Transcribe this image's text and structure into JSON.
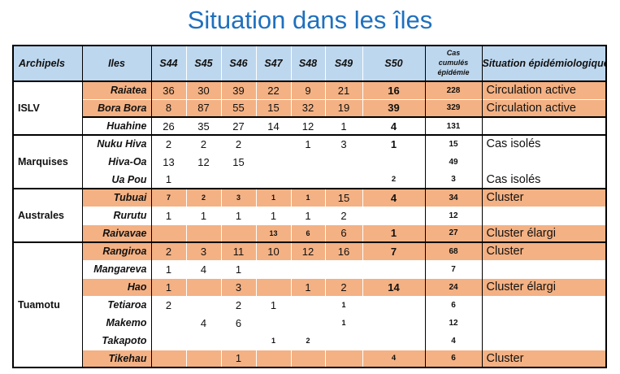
{
  "title": "Situation dans les îles",
  "colors": {
    "title_blue": "#1F70BE",
    "header_bg": "#BDD7EE",
    "highlight_orange": "#F4B183",
    "border_black": "#000000"
  },
  "table": {
    "headers": {
      "archipels": "Archipels",
      "iles": "Iles",
      "weeks": [
        "S44",
        "S45",
        "S46",
        "S47",
        "S48",
        "S49",
        "S50"
      ],
      "cumul": "Cas cumulés épidémie",
      "situation": "Situation épidémiologique"
    },
    "groups": [
      {
        "name": "ISLV",
        "rows": [
          {
            "island": "Raiatea",
            "orange": true,
            "weeks": [
              "36",
              "30",
              "39",
              "22",
              "9",
              "21",
              "16"
            ],
            "cumul": "228",
            "situation": "Circulation active"
          },
          {
            "island": "Bora Bora",
            "orange": true,
            "divider": true,
            "weeks": [
              "8",
              "87",
              "55",
              "15",
              "32",
              "19",
              "39"
            ],
            "cumul": "329",
            "situation": "Circulation active"
          },
          {
            "island": "Huahine",
            "orange": false,
            "weeks": [
              "26",
              "35",
              "27",
              "14",
              "12",
              "1",
              "4"
            ],
            "cumul": "131",
            "situation": ""
          }
        ]
      },
      {
        "name": "Marquises",
        "rows": [
          {
            "island": "Nuku Hiva",
            "orange": false,
            "weeks": [
              "2",
              "2",
              "2",
              null,
              "1",
              "3",
              "1"
            ],
            "cumul": "15",
            "situation": "Cas isolés"
          },
          {
            "island": "Hiva-Oa",
            "orange": false,
            "weeks": [
              "13",
              "12",
              "15",
              null,
              null,
              null,
              null
            ],
            "cumul": "49",
            "situation": ""
          },
          {
            "island": "Ua Pou",
            "orange": false,
            "weeks": [
              "1",
              null,
              null,
              null,
              null,
              null,
              {
                "v": "2",
                "small": true
              }
            ],
            "cumul": "3",
            "situation": "Cas isolés"
          }
        ]
      },
      {
        "name": "Australes",
        "rows": [
          {
            "island": "Tubuai",
            "orange": true,
            "weeks": [
              {
                "v": "7",
                "small": true
              },
              {
                "v": "2",
                "small": true
              },
              {
                "v": "3",
                "small": true
              },
              {
                "v": "1",
                "small": true
              },
              {
                "v": "1",
                "small": true
              },
              "15",
              "4"
            ],
            "cumul": "34",
            "situation": "Cluster"
          },
          {
            "island": "Rurutu",
            "orange": false,
            "weeks": [
              "1",
              "1",
              "1",
              "1",
              "1",
              "2",
              null
            ],
            "cumul": "12",
            "situation": ""
          },
          {
            "island": "Raivavae",
            "orange": true,
            "weeks": [
              null,
              null,
              null,
              {
                "v": "13",
                "small": true
              },
              {
                "v": "6",
                "small": true
              },
              "6",
              "1"
            ],
            "cumul": "27",
            "situation": "Cluster élargi"
          }
        ]
      },
      {
        "name": "Tuamotu",
        "rows": [
          {
            "island": "Rangiroa",
            "orange": true,
            "weeks": [
              "2",
              "3",
              "11",
              "10",
              "12",
              "16",
              "7"
            ],
            "cumul": "68",
            "situation": "Cluster"
          },
          {
            "island": "Mangareva",
            "orange": false,
            "weeks": [
              "1",
              "4",
              "1",
              null,
              null,
              null,
              null
            ],
            "cumul": "7",
            "situation": ""
          },
          {
            "island": "Hao",
            "orange": true,
            "weeks": [
              "1",
              null,
              "3",
              null,
              "1",
              "2",
              "14"
            ],
            "cumul": "24",
            "situation": "Cluster élargi"
          },
          {
            "island": "Tetiaroa",
            "orange": false,
            "weeks": [
              "2",
              null,
              "2",
              "1",
              null,
              {
                "v": "1",
                "small": true
              },
              null
            ],
            "cumul": "6",
            "situation": ""
          },
          {
            "island": "Makemo",
            "orange": false,
            "weeks": [
              null,
              "4",
              "6",
              null,
              null,
              {
                "v": "1",
                "small": true
              },
              null
            ],
            "cumul": "12",
            "situation": ""
          },
          {
            "island": "Takapoto",
            "orange": false,
            "weeks": [
              null,
              null,
              null,
              {
                "v": "1",
                "small": true
              },
              {
                "v": "2",
                "small": true
              },
              null,
              null
            ],
            "cumul": "4",
            "situation": ""
          },
          {
            "island": "Tikehau",
            "orange": true,
            "weeks": [
              null,
              null,
              "1",
              null,
              null,
              null,
              {
                "v": "4",
                "small": true
              }
            ],
            "cumul": "6",
            "situation": "Cluster"
          }
        ]
      }
    ]
  }
}
